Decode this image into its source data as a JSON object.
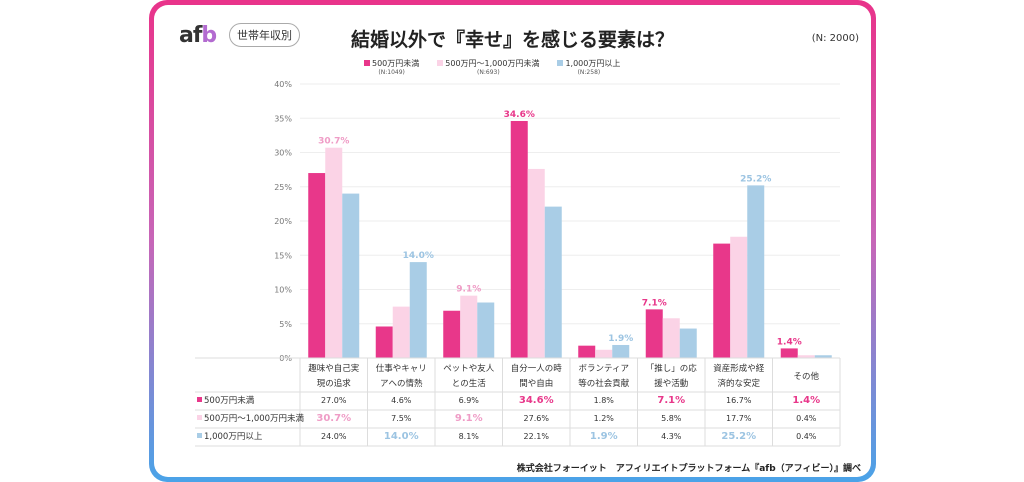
{
  "logo": "afb",
  "badge": "世帯年収別",
  "title": "結婚以外で『幸せ』を感じる要素は？",
  "n_total": "(N: 2000)",
  "source": "株式会社フォーイット　アフィリエイトプラットフォーム『afb（アフィビー）』調べ",
  "chart_data": {
    "type": "bar",
    "title": "結婚以外で『幸せ』を感じる要素は？",
    "ylim": [
      0,
      40
    ],
    "yticks": [
      "0%",
      "5%",
      "10%",
      "15%",
      "20%",
      "25%",
      "30%",
      "35%",
      "40%"
    ],
    "grid": true,
    "legend": "top",
    "categories": [
      "趣味や自己実現の追求",
      "仕事やキャリアへの情熱",
      "ペットや友人との生活",
      "自分一人の時間や自由",
      "ボランティア等の社会貢献",
      "「推し」の応援や活動",
      "資産形成や経済的な安定",
      "その他"
    ],
    "category_lines": [
      [
        "趣味や自己実",
        "現の追求"
      ],
      [
        "仕事やキャリ",
        "アへの情熱"
      ],
      [
        "ペットや友人",
        "との生活"
      ],
      [
        "自分一人の時",
        "間や自由"
      ],
      [
        "ボランティア",
        "等の社会貢献"
      ],
      [
        "「推し」の応",
        "援や活動"
      ],
      [
        "資産形成や経",
        "済的な安定"
      ],
      [
        "その他",
        ""
      ]
    ],
    "series": [
      {
        "name": "500万円未満",
        "n": "(N:1049)",
        "color": "#e8378a",
        "label_color": "#e8378a",
        "values": [
          27.0,
          4.6,
          6.9,
          34.6,
          1.8,
          7.1,
          16.7,
          1.4
        ]
      },
      {
        "name": "500万円～1,000万円未満",
        "n": "(N:693)",
        "color": "#fbd3e6",
        "label_color": "#ef9cc6",
        "values": [
          30.7,
          7.5,
          9.1,
          27.6,
          1.2,
          5.8,
          17.7,
          0.4
        ]
      },
      {
        "name": "1,000万円以上",
        "n": "(N:258)",
        "color": "#a9cde6",
        "label_color": "#9cc4e2",
        "values": [
          24.0,
          14.0,
          8.1,
          22.1,
          1.9,
          4.3,
          25.2,
          0.4
        ]
      }
    ]
  }
}
